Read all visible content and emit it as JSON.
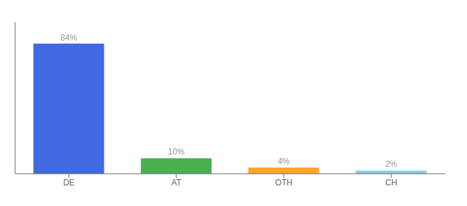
{
  "chart_data": {
    "type": "bar",
    "categories": [
      "DE",
      "AT",
      "OTH",
      "CH"
    ],
    "values": [
      84,
      10,
      4,
      2
    ],
    "value_labels": [
      "84%",
      "10%",
      "4%",
      "2%"
    ],
    "colors": [
      "#4169E1",
      "#4CAF50",
      "#FFA726",
      "#87CEEB"
    ],
    "ylim": [
      0,
      98
    ],
    "data_labels": true,
    "tick_labels": "x"
  }
}
